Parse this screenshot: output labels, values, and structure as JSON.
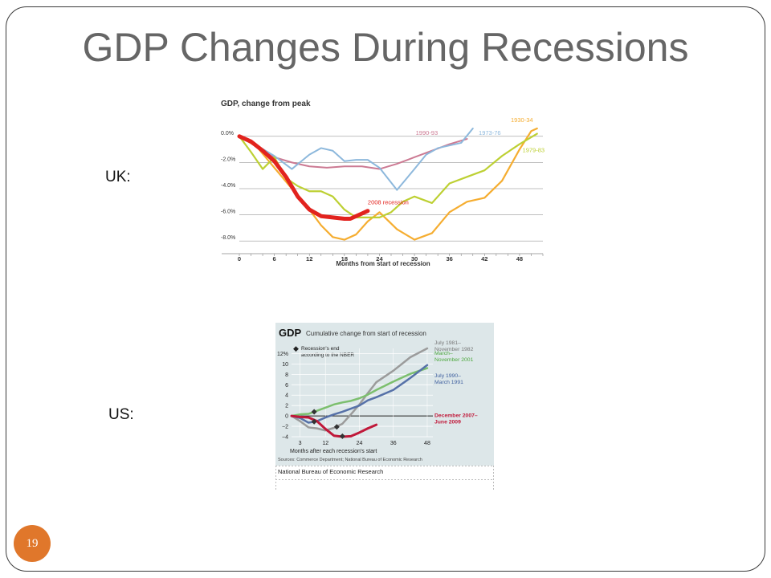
{
  "slide": {
    "title": "GDP Changes During Recessions",
    "uk_label": "UK:",
    "us_label": "US:",
    "number": "19"
  },
  "colors": {
    "title": "#666666",
    "badge": "#e0772b",
    "frame": "#3a3a3a"
  },
  "chart_data": [
    {
      "type": "line",
      "title": "GDP, change from peak",
      "xlabel": "Months from start of recession",
      "ylabel": "",
      "xlim": [
        0,
        52
      ],
      "ylim": [
        -8.6,
        0.6
      ],
      "x_ticks": [
        0,
        6,
        12,
        18,
        24,
        30,
        36,
        42,
        48
      ],
      "y_ticks": [
        {
          "value": 0,
          "label": "0.0%"
        },
        {
          "value": -2,
          "label": "-2.0%"
        },
        {
          "value": -4,
          "label": "-4.0%"
        },
        {
          "value": -6,
          "label": "-6.0%"
        },
        {
          "value": -8,
          "label": "-8.0%"
        }
      ],
      "grid": "horizontal",
      "series": [
        {
          "name": "1990-93",
          "color": "#cc7a93",
          "width": 2,
          "x": [
            0,
            3,
            6,
            9,
            12,
            15,
            18,
            21,
            24,
            27,
            30,
            33,
            36,
            39
          ],
          "y": [
            0,
            -0.8,
            -1.6,
            -2,
            -2.3,
            -2.4,
            -2.3,
            -2.3,
            -2.5,
            -2.1,
            -1.6,
            -1.1,
            -0.6,
            -0.2
          ]
        },
        {
          "name": "1973-76",
          "color": "#8db8dc",
          "width": 2,
          "x": [
            0,
            3,
            6,
            9,
            12,
            14,
            16,
            18,
            20,
            22,
            24,
            27,
            30,
            32,
            34,
            36,
            38,
            40
          ],
          "y": [
            0,
            -0.7,
            -1.5,
            -2.5,
            -1.4,
            -0.9,
            -1.1,
            -1.9,
            -1.8,
            -1.8,
            -2.4,
            -4.1,
            -2.5,
            -1.4,
            -0.9,
            -0.7,
            -0.5,
            0.6
          ]
        },
        {
          "name": "1930-34",
          "color": "#f5ad30",
          "width": 2.2,
          "x": [
            0,
            3,
            6,
            9,
            12,
            14,
            16,
            18,
            20,
            22,
            24,
            27,
            30,
            33,
            36,
            39,
            42,
            45,
            48,
            50,
            51
          ],
          "y": [
            0,
            -0.8,
            -2.4,
            -4,
            -5.6,
            -6.8,
            -7.7,
            -7.9,
            -7.5,
            -6.5,
            -5.8,
            -7.1,
            -7.9,
            -7.4,
            -5.8,
            -5,
            -4.7,
            -3.4,
            -1,
            0.4,
            0.6
          ]
        },
        {
          "name": "1979-83",
          "color": "#bdd033",
          "width": 2.2,
          "x": [
            0,
            2,
            4,
            6,
            8,
            10,
            12,
            14,
            16,
            18,
            20,
            22,
            24,
            26,
            28,
            30,
            33,
            36,
            39,
            42,
            45,
            48,
            51
          ],
          "y": [
            0,
            -1.2,
            -2.5,
            -1.6,
            -3.2,
            -3.8,
            -4.2,
            -4.2,
            -4.6,
            -5.6,
            -6.2,
            -6.2,
            -6.2,
            -5.8,
            -5,
            -4.6,
            -5.1,
            -3.6,
            -3.1,
            -2.6,
            -1.5,
            -0.6,
            0.2
          ]
        },
        {
          "name": "2008 recession",
          "color": "#e2231e",
          "width": 5,
          "x": [
            0,
            2,
            4,
            6,
            8,
            10,
            12,
            14,
            16,
            18,
            19,
            20,
            21,
            22
          ],
          "y": [
            0,
            -0.4,
            -1.1,
            -1.9,
            -3.1,
            -4.6,
            -5.6,
            -6.1,
            -6.2,
            -6.3,
            -6.3,
            -6.1,
            -5.9,
            -5.7
          ]
        }
      ]
    },
    {
      "type": "line",
      "title": "GDP",
      "subtitle": "Cumulative change from start of recession",
      "xlabel": "Months after each recession's start",
      "ylabel": "",
      "xlim": [
        0,
        50
      ],
      "ylim": [
        -4,
        13
      ],
      "x_ticks": [
        3,
        12,
        24,
        36,
        48
      ],
      "y_ticks": [
        {
          "value": 12,
          "label": "12%"
        },
        {
          "value": 10,
          "label": "10"
        },
        {
          "value": 8,
          "label": "8"
        },
        {
          "value": 6,
          "label": "6"
        },
        {
          "value": 4,
          "label": "4"
        },
        {
          "value": 2,
          "label": "2"
        },
        {
          "value": 0,
          "label": "0"
        },
        {
          "value": -2,
          "label": "−2"
        },
        {
          "value": -4,
          "label": "−4"
        }
      ],
      "legend": "◆ Recession's end according to the NBER",
      "source": "Sources: Commerce Department; National Bureau of Economic Research",
      "caption": "National Bureau of Economic Research",
      "series": [
        {
          "name": "July 1981– November 1982",
          "color": "#9b9b9b",
          "width": 2.5,
          "x": [
            0,
            3,
            6,
            9,
            12,
            15,
            18,
            21,
            24,
            27,
            30,
            36,
            42,
            48
          ],
          "y": [
            0,
            -1,
            -2.2,
            -2.4,
            -2.8,
            -2.3,
            -1.5,
            0.3,
            2.2,
            4.4,
            6.5,
            8.7,
            11.3,
            13
          ]
        },
        {
          "name": "March– November 2001",
          "color": "#7cbf6e",
          "width": 2.5,
          "x": [
            0,
            3,
            6,
            9,
            12,
            15,
            18,
            21,
            24,
            27,
            30,
            36,
            42,
            48
          ],
          "y": [
            0,
            0.3,
            0.4,
            1,
            1.6,
            2.2,
            2.6,
            2.9,
            3.4,
            4.1,
            5,
            6.6,
            8.1,
            9.2
          ]
        },
        {
          "name": "July 1990– March 1991",
          "color": "#5671a8",
          "width": 2.5,
          "x": [
            0,
            3,
            6,
            9,
            12,
            15,
            18,
            21,
            24,
            27,
            30,
            36,
            42,
            48
          ],
          "y": [
            0,
            -0.4,
            -1.3,
            -1,
            -0.3,
            0.3,
            0.8,
            1.4,
            2,
            3,
            3.6,
            5,
            7.3,
            9.8
          ]
        },
        {
          "name": "December 2007– June 2009",
          "color": "#c0193a",
          "width": 3,
          "x": [
            0,
            3,
            6,
            9,
            12,
            15,
            18,
            21,
            24,
            27,
            30
          ],
          "y": [
            0,
            -0.2,
            -0.3,
            -1,
            -2.5,
            -3.8,
            -4,
            -3.9,
            -3.2,
            -2.4,
            -1.7
          ]
        }
      ],
      "nber_markers": [
        {
          "series": "July 1990– March 1991",
          "x": 8,
          "y": -1.1
        },
        {
          "series": "July 1981– November 1982",
          "x": 16,
          "y": -2.1
        },
        {
          "series": "December 2007– June 2009",
          "x": 18,
          "y": -3.9
        },
        {
          "series": "March– November 2001",
          "x": 8,
          "y": 0.8
        }
      ]
    }
  ]
}
